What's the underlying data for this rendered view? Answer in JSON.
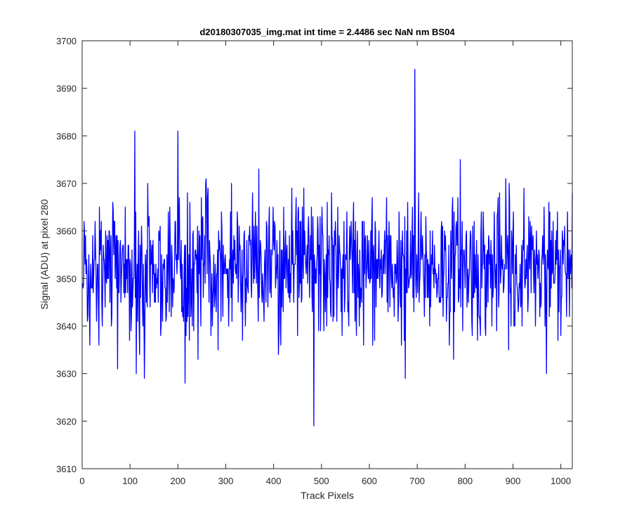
{
  "chart_data": {
    "type": "line",
    "title": "d20180307035_img.mat int time = 2.4486 sec  NaN nm BS04",
    "xlabel": "Track Pixels",
    "ylabel": "Signal (ADU) at pixel 280",
    "xlim": [
      0,
      1024
    ],
    "ylim": [
      3610,
      3700
    ],
    "xticks": [
      0,
      100,
      200,
      300,
      400,
      500,
      600,
      700,
      800,
      900,
      1000
    ],
    "yticks": [
      3610,
      3620,
      3630,
      3640,
      3650,
      3660,
      3670,
      3680,
      3690,
      3700
    ],
    "grid": false,
    "line_color": "#0000ff",
    "series": [
      {
        "x_start": 1,
        "x_step": 1,
        "features": [
          {
            "x": 110,
            "y": 3681
          },
          {
            "x": 200,
            "y": 3681
          },
          {
            "x": 215,
            "y": 3628
          },
          {
            "x": 130,
            "y": 3629
          },
          {
            "x": 484,
            "y": 3619
          },
          {
            "x": 695,
            "y": 3694
          },
          {
            "x": 790,
            "y": 3675
          },
          {
            "x": 16,
            "y": 3636
          },
          {
            "x": 74,
            "y": 3631
          },
          {
            "x": 113,
            "y": 3630
          },
          {
            "x": 675,
            "y": 3629
          },
          {
            "x": 970,
            "y": 3630
          },
          {
            "x": 1024,
            "y": 3668
          }
        ]
      }
    ]
  }
}
